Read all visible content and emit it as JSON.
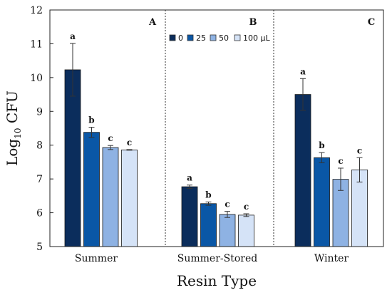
{
  "chart_data": {
    "type": "bar",
    "ylabel": {
      "base": "Log",
      "sub": "10",
      "rest": " CFU"
    },
    "xlabel": "Resin Type",
    "ylim": [
      5,
      12
    ],
    "yticks": [
      "5",
      "6",
      "7",
      "8",
      "9",
      "10",
      "11",
      "12"
    ],
    "categories": [
      "Summer",
      "Summer-Stored",
      "Winter"
    ],
    "panel_labels": [
      "A",
      "B",
      "C"
    ],
    "legend_placement": "top-center (panel B)",
    "series": [
      {
        "name": "0",
        "color": "#0b2d5c",
        "values": [
          10.23,
          6.77,
          9.5
        ],
        "errors": [
          0.78,
          0.05,
          0.47
        ],
        "letters": [
          "a",
          "a",
          "a"
        ]
      },
      {
        "name": "25",
        "color": "#0a57a6",
        "values": [
          8.38,
          6.27,
          7.63
        ],
        "errors": [
          0.15,
          0.05,
          0.15
        ],
        "letters": [
          "b",
          "b",
          "b"
        ]
      },
      {
        "name": "50",
        "color": "#8eb2e3",
        "values": [
          7.93,
          5.95,
          6.99
        ],
        "errors": [
          0.06,
          0.09,
          0.33
        ],
        "letters": [
          "c",
          "c",
          "c"
        ]
      },
      {
        "name": "100 μL",
        "color": "#d5e3f7",
        "values": [
          7.86,
          5.93,
          7.27
        ],
        "errors": [
          0.01,
          0.04,
          0.36
        ],
        "letters": [
          "c",
          "c",
          "c"
        ]
      }
    ]
  }
}
